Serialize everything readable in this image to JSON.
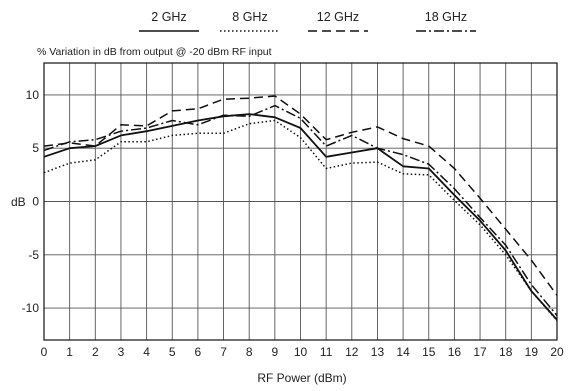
{
  "chart_data": {
    "type": "line",
    "subtitle": "% Variation in dB from output @ -20 dBm RF input",
    "xlabel": "RF Power (dBm)",
    "ylabel": "dB",
    "xlim": [
      0,
      20
    ],
    "ylim": [
      -13,
      13
    ],
    "x_ticks": [
      0,
      1,
      2,
      3,
      4,
      5,
      6,
      7,
      8,
      9,
      10,
      11,
      12,
      13,
      14,
      15,
      16,
      17,
      18,
      19,
      20
    ],
    "y_ticks": [
      10,
      5,
      0,
      -5,
      -10
    ],
    "y_tick_labels": [
      "10",
      "5",
      "0",
      "-5",
      "-10"
    ],
    "grid": true,
    "legend_position": "top",
    "series": [
      {
        "name": "2 GHz",
        "style": "solid",
        "color": "#111111",
        "x": [
          0,
          1,
          2,
          3,
          4,
          5,
          6,
          7,
          8,
          9,
          10,
          11,
          12,
          13,
          14,
          15,
          16,
          17,
          18,
          19,
          20
        ],
        "y": [
          4.2,
          5.0,
          5.2,
          6.2,
          6.6,
          7.1,
          7.6,
          8.0,
          8.2,
          7.9,
          6.9,
          4.2,
          4.6,
          5.0,
          3.3,
          3.1,
          0.6,
          -1.8,
          -4.6,
          -8.4,
          -11.1
        ]
      },
      {
        "name": "8 GHz",
        "style": "dotted",
        "color": "#111111",
        "x": [
          0,
          1,
          2,
          3,
          4,
          5,
          6,
          7,
          8,
          9,
          10,
          11,
          12,
          13,
          14,
          15,
          16,
          17,
          18,
          19,
          20
        ],
        "y": [
          2.7,
          3.6,
          3.9,
          5.6,
          5.6,
          6.2,
          6.4,
          6.4,
          7.3,
          7.6,
          6.0,
          3.1,
          3.6,
          3.7,
          2.6,
          2.5,
          0.1,
          -2.2,
          -5.0,
          -8.4,
          -11.2
        ]
      },
      {
        "name": "12 GHz",
        "style": "dashed",
        "color": "#111111",
        "x": [
          0,
          1,
          2,
          3,
          4,
          5,
          6,
          7,
          8,
          9,
          10,
          11,
          12,
          13,
          14,
          15,
          16,
          17,
          18,
          19,
          20
        ],
        "y": [
          5.2,
          5.5,
          5.2,
          7.2,
          7.1,
          8.5,
          8.7,
          9.6,
          9.7,
          9.9,
          8.2,
          5.8,
          6.5,
          7.0,
          5.9,
          5.2,
          3.1,
          0.3,
          -2.6,
          -5.5,
          -8.8
        ]
      },
      {
        "name": "18 GHz",
        "style": "dash-dot",
        "color": "#111111",
        "x": [
          0,
          1,
          2,
          3,
          4,
          5,
          6,
          7,
          8,
          9,
          10,
          11,
          12,
          13,
          14,
          15,
          16,
          17,
          18,
          19,
          20
        ],
        "y": [
          4.8,
          5.6,
          5.8,
          6.6,
          6.9,
          7.6,
          7.2,
          8.1,
          8.0,
          9.0,
          7.8,
          5.2,
          6.2,
          5.0,
          4.4,
          3.5,
          1.2,
          -1.5,
          -4.1,
          -7.8,
          -10.7
        ]
      }
    ]
  }
}
